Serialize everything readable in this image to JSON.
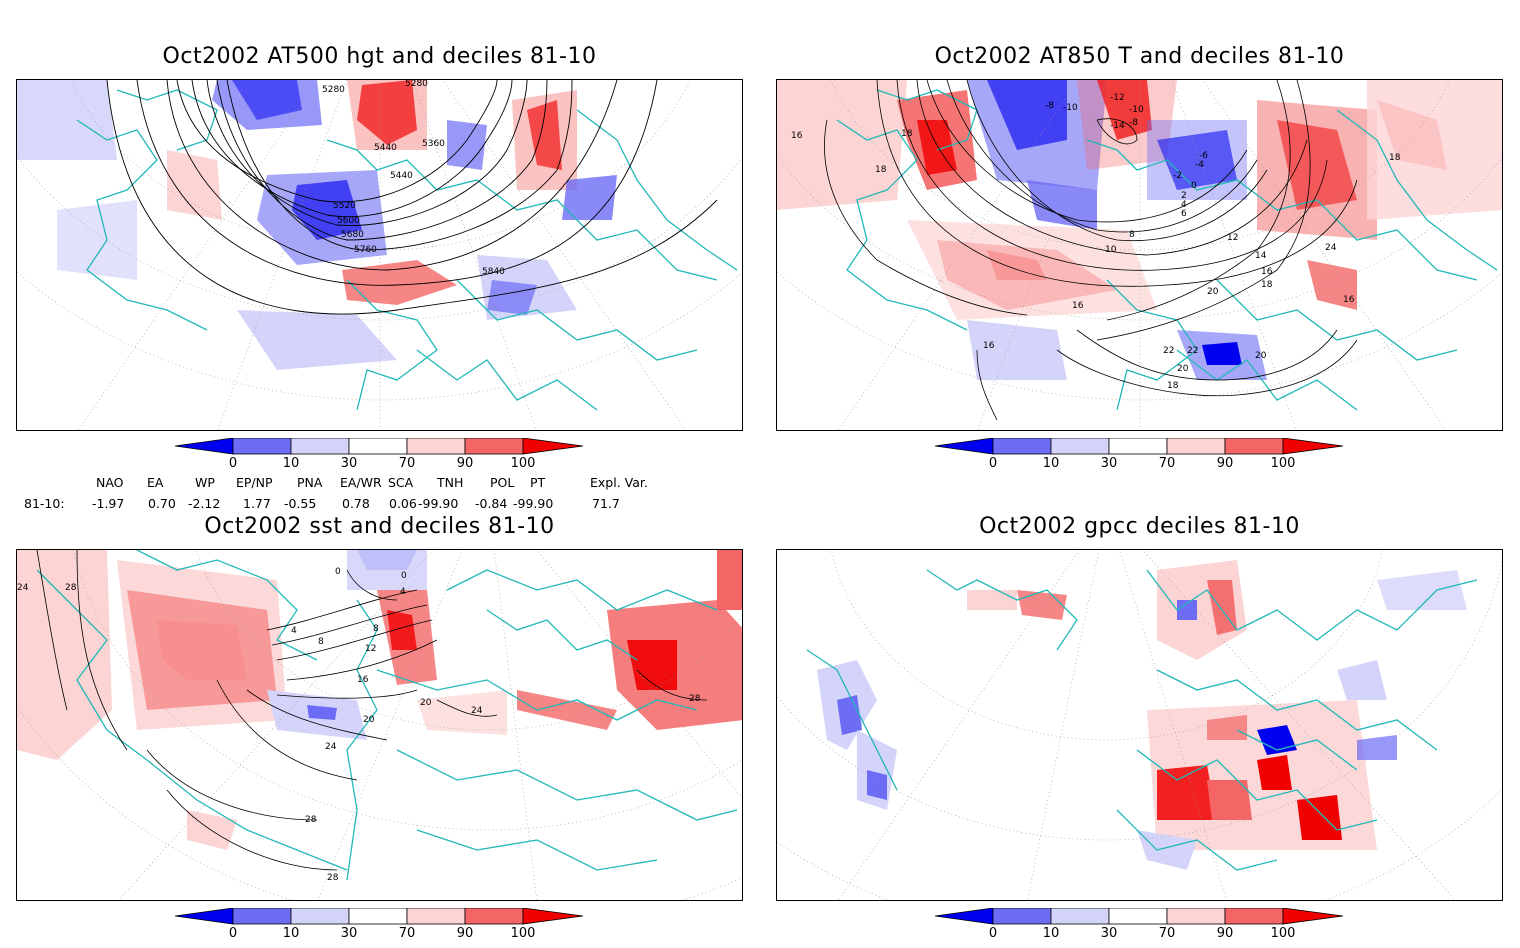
{
  "panels": [
    {
      "title": "Oct2002 AT500 hgt and deciles 81-10",
      "contour_labels": [
        "5280",
        "5280",
        "5360",
        "5440",
        "5440",
        "5520",
        "5600",
        "5680",
        "5760",
        "5840"
      ]
    },
    {
      "title": "Oct2002 AT850 T and deciles 81-10",
      "contour_labels": [
        "-12",
        "-8",
        "-10",
        "-14",
        "-10",
        "-8",
        "-6",
        "-4",
        "-2",
        "0",
        "2",
        "4",
        "6",
        "8",
        "10",
        "12",
        "14",
        "16",
        "18",
        "20",
        "22",
        "24",
        "20",
        "22",
        "18",
        "16",
        "18",
        "16",
        "18",
        "16",
        "20",
        "18",
        "16"
      ]
    },
    {
      "title": "Oct2002 sst and deciles 81-10",
      "contour_labels": [
        "24",
        "28",
        "0",
        "0",
        "4",
        "4",
        "8",
        "8",
        "12",
        "16",
        "20",
        "20",
        "24",
        "24",
        "28",
        "28",
        "28"
      ]
    },
    {
      "title": "Oct2002 gpcc deciles 81-10",
      "contour_labels": []
    }
  ],
  "colorbar": {
    "labels": [
      "0",
      "10",
      "30",
      "70",
      "90",
      "100"
    ],
    "colors": [
      "#0000f0",
      "#6c6cf5",
      "#d4d4fa",
      "#ffffff",
      "#fcd4d4",
      "#f46666",
      "#f00000"
    ]
  },
  "indices": {
    "headers": [
      "NAO",
      "EA",
      "WP",
      "EP/NP",
      "PNA",
      "EA/WR",
      "SCA",
      "TNH",
      "POL",
      "PT",
      "Expl. Var."
    ],
    "row_label": "81-10:",
    "values": [
      "-1.97",
      "0.70",
      "-2.12",
      "1.77",
      "-0.55",
      "0.78",
      "0.06",
      "-99.90",
      "-0.84",
      "-99.90",
      "71.7"
    ]
  },
  "colors": {
    "coastline": "#22b8b8",
    "contour": "#000000",
    "grid": "#999999"
  }
}
